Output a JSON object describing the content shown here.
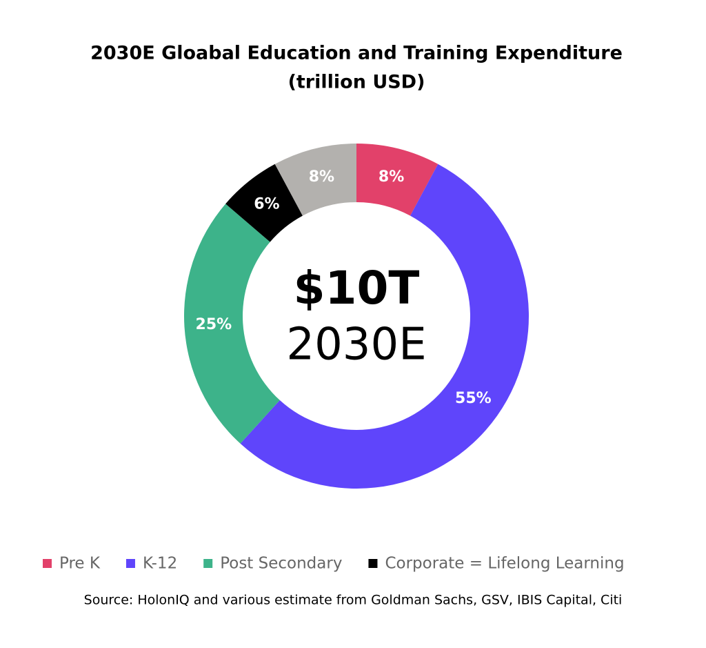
{
  "chart_data": {
    "type": "donut",
    "title": "2030E Gloabal Education and Training Expenditure",
    "subtitle": "(trillion USD)",
    "categories": [
      "Pre K",
      "K-12",
      "Post Secondary",
      "Corporate = Lifelong Learning",
      null
    ],
    "values": [
      8,
      55,
      25,
      6,
      8
    ],
    "value_labels": [
      "8%",
      "55%",
      "25%",
      "6%",
      "8%"
    ],
    "colors": [
      "#e2416a",
      "#5f45fb",
      "#3db38a",
      "#000000",
      "#b3b1ae"
    ],
    "center_label": "$10T",
    "center_sublabel": "2030E",
    "source": "Source: HolonIQ and various estimate from Goldman Sachs, GSV, IBIS Capital, Citi"
  }
}
